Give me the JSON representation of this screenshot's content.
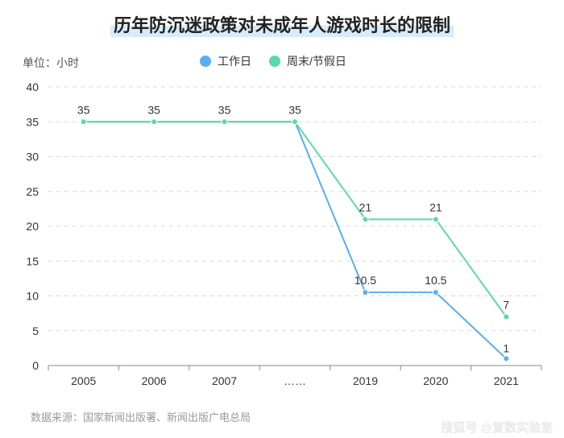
{
  "title": "历年防沉迷政策对未成年人游戏时长的限制",
  "unit": "单位：小时",
  "source": "数据来源：国家新闻出版署、新闻出版广电总局",
  "watermark": "搜狐号 @复数实验室",
  "colors": {
    "weekday": "#5aaef0",
    "weekend": "#5dd8a8",
    "grid": "#d9d9d9",
    "axis": "#888888"
  },
  "chart_data": {
    "type": "line",
    "categories": [
      "2005",
      "2006",
      "2007",
      "……",
      "2019",
      "2020",
      "2021"
    ],
    "ylim": [
      0,
      40
    ],
    "yticks": [
      0,
      5,
      10,
      15,
      20,
      25,
      30,
      35,
      40
    ],
    "grid": true,
    "legend_position": "top-center",
    "series": [
      {
        "name": "工作日",
        "values": [
          35,
          35,
          35,
          35,
          10.5,
          10.5,
          1
        ],
        "labels": [
          "",
          "",
          "",
          "",
          "10.5",
          "10.5",
          "1"
        ]
      },
      {
        "name": "周末/节假日",
        "values": [
          35,
          35,
          35,
          35,
          21,
          21,
          7
        ],
        "labels": [
          "35",
          "35",
          "35",
          "35",
          "21",
          "21",
          "7"
        ]
      }
    ]
  }
}
